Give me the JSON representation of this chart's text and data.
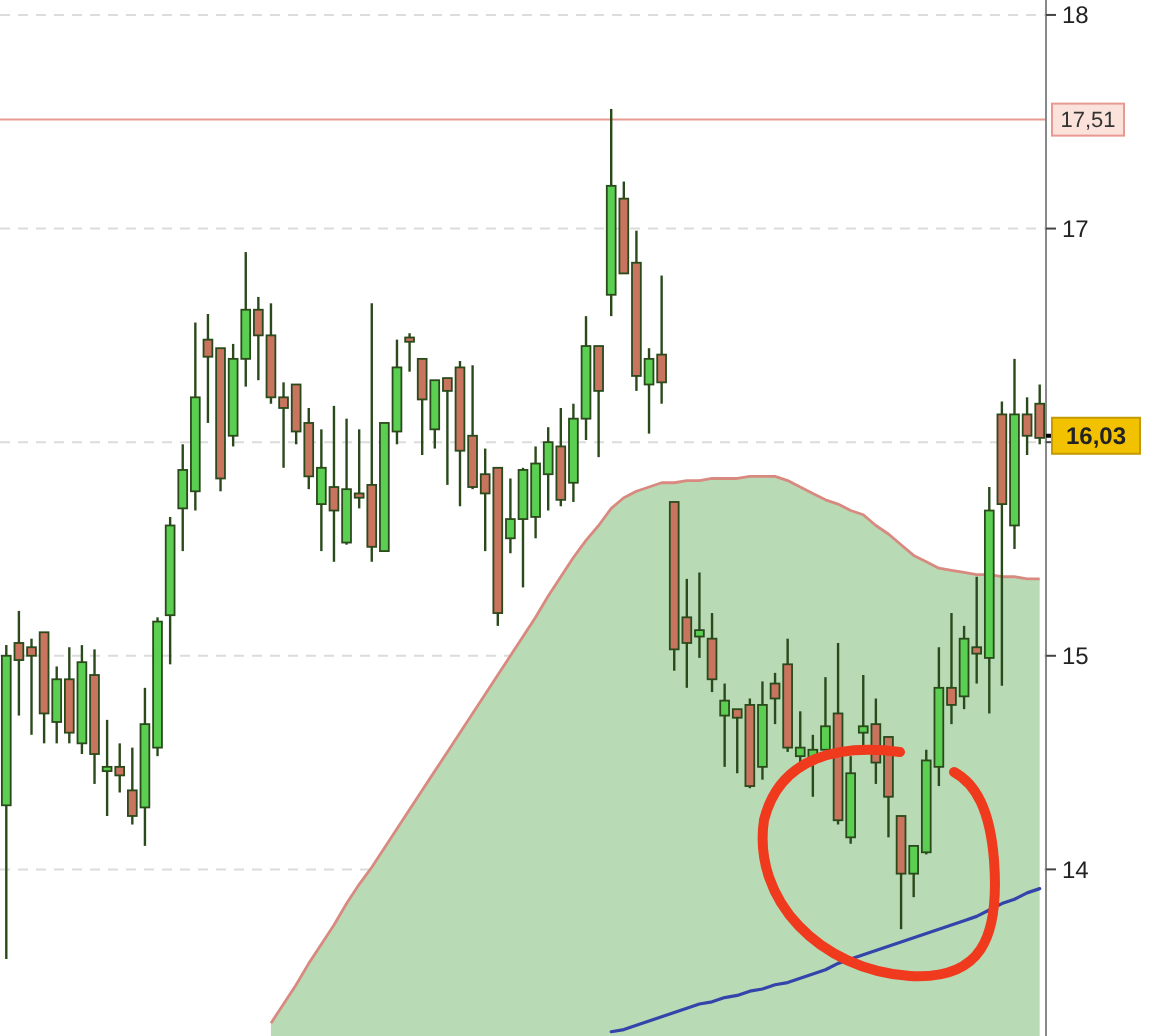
{
  "chart_data": {
    "type": "candlestick",
    "categories": [
      null,
      null,
      null,
      null,
      null,
      null,
      null,
      null,
      null,
      null,
      null,
      null,
      null,
      null,
      null,
      null,
      null,
      null,
      null,
      null,
      null,
      null,
      null,
      null,
      null,
      null,
      null,
      null,
      null,
      null,
      null,
      null,
      null,
      null,
      null,
      null,
      null,
      null,
      null,
      null,
      null,
      null,
      null,
      null,
      null,
      null,
      null,
      null,
      null,
      null,
      null,
      null,
      null,
      null,
      null,
      null,
      null,
      null,
      null,
      null,
      null,
      null,
      null,
      null,
      null,
      null,
      null,
      null,
      null,
      null,
      null,
      null,
      null,
      null,
      null,
      null,
      null,
      null,
      null,
      null,
      null,
      null,
      null
    ],
    "ohlc": [
      [
        14.3,
        15.05,
        13.58,
        15.0
      ],
      [
        15.06,
        15.21,
        14.72,
        14.98
      ],
      [
        15.04,
        15.08,
        14.63,
        15.0
      ],
      [
        15.11,
        15.11,
        14.59,
        14.73
      ],
      [
        14.69,
        14.95,
        14.59,
        14.89
      ],
      [
        14.89,
        15.04,
        14.59,
        14.64
      ],
      [
        14.59,
        15.05,
        14.54,
        14.97
      ],
      [
        14.91,
        15.03,
        14.4,
        14.54
      ],
      [
        14.46,
        14.7,
        14.25,
        14.48
      ],
      [
        14.48,
        14.59,
        14.36,
        14.44
      ],
      [
        14.37,
        14.57,
        14.21,
        14.25
      ],
      [
        14.29,
        14.85,
        14.11,
        14.68
      ],
      [
        14.57,
        15.18,
        14.53,
        15.16
      ],
      [
        15.19,
        15.65,
        14.96,
        15.61
      ],
      [
        15.69,
        15.99,
        15.49,
        15.87
      ],
      [
        15.77,
        16.56,
        15.68,
        16.21
      ],
      [
        16.48,
        16.6,
        16.09,
        16.4
      ],
      [
        16.44,
        16.44,
        15.77,
        15.83
      ],
      [
        16.03,
        16.46,
        15.98,
        16.39
      ],
      [
        16.39,
        16.89,
        16.26,
        16.62
      ],
      [
        16.62,
        16.68,
        16.29,
        16.5
      ],
      [
        16.5,
        16.65,
        16.18,
        16.21
      ],
      [
        16.21,
        16.28,
        15.88,
        16.16
      ],
      [
        16.27,
        16.27,
        15.99,
        16.05
      ],
      [
        16.09,
        16.16,
        15.78,
        15.84
      ],
      [
        15.71,
        16.06,
        15.49,
        15.88
      ],
      [
        15.79,
        16.17,
        15.44,
        15.68
      ],
      [
        15.53,
        16.11,
        15.52,
        15.78
      ],
      [
        15.76,
        16.06,
        15.69,
        15.74
      ],
      [
        15.8,
        16.65,
        15.44,
        15.51
      ],
      [
        15.49,
        16.09,
        15.49,
        16.09
      ],
      [
        16.05,
        16.48,
        15.99,
        16.35
      ],
      [
        16.49,
        16.51,
        16.33,
        16.47
      ],
      [
        16.39,
        16.39,
        15.94,
        16.2
      ],
      [
        16.06,
        16.29,
        15.97,
        16.29
      ],
      [
        16.3,
        16.3,
        15.8,
        16.24
      ],
      [
        16.35,
        16.38,
        15.7,
        15.96
      ],
      [
        16.03,
        16.36,
        15.78,
        15.79
      ],
      [
        15.85,
        15.97,
        15.49,
        15.76
      ],
      [
        15.88,
        15.88,
        15.14,
        15.2
      ],
      [
        15.55,
        15.83,
        15.48,
        15.64
      ],
      [
        15.64,
        15.88,
        15.32,
        15.87
      ],
      [
        15.65,
        15.98,
        15.55,
        15.9
      ],
      [
        15.85,
        16.07,
        15.68,
        16.0
      ],
      [
        15.98,
        16.16,
        15.7,
        15.73
      ],
      [
        15.81,
        16.18,
        15.72,
        16.11
      ],
      [
        16.11,
        16.59,
        16.01,
        16.45
      ],
      [
        16.45,
        16.45,
        15.93,
        16.24
      ],
      [
        16.69,
        17.56,
        16.59,
        17.2
      ],
      [
        17.14,
        17.22,
        16.79,
        16.79
      ],
      [
        16.84,
        16.99,
        16.24,
        16.31
      ],
      [
        16.27,
        16.44,
        16.04,
        16.39
      ],
      [
        16.41,
        16.78,
        16.18,
        16.28
      ],
      [
        15.72,
        15.72,
        14.93,
        15.03
      ],
      [
        15.18,
        15.36,
        14.85,
        15.06
      ],
      [
        15.09,
        15.39,
        14.99,
        15.12
      ],
      [
        15.08,
        15.2,
        14.83,
        14.89
      ],
      [
        14.72,
        14.87,
        14.48,
        14.79
      ],
      [
        14.75,
        14.75,
        14.45,
        14.71
      ],
      [
        14.77,
        14.8,
        14.38,
        14.39
      ],
      [
        14.48,
        14.88,
        14.42,
        14.77
      ],
      [
        14.87,
        14.92,
        14.68,
        14.8
      ],
      [
        14.96,
        15.08,
        14.55,
        14.57
      ],
      [
        14.53,
        14.74,
        14.49,
        14.57
      ],
      [
        14.52,
        14.63,
        14.34,
        14.56
      ],
      [
        14.56,
        14.9,
        14.56,
        14.67
      ],
      [
        14.73,
        15.06,
        14.21,
        14.23
      ],
      [
        14.15,
        14.53,
        14.12,
        14.45
      ],
      [
        14.64,
        14.91,
        14.58,
        14.67
      ],
      [
        14.68,
        14.8,
        14.4,
        14.5
      ],
      [
        14.62,
        14.62,
        14.15,
        14.34
      ],
      [
        14.25,
        14.25,
        13.72,
        13.98
      ],
      [
        13.98,
        14.11,
        13.87,
        14.11
      ],
      [
        14.08,
        14.56,
        14.07,
        14.51
      ],
      [
        14.48,
        15.04,
        14.39,
        14.85
      ],
      [
        14.85,
        15.2,
        14.68,
        14.77
      ],
      [
        14.81,
        15.14,
        14.75,
        15.08
      ],
      [
        15.04,
        15.37,
        14.87,
        15.01
      ],
      [
        14.99,
        15.79,
        14.73,
        15.68
      ],
      [
        16.13,
        16.19,
        14.86,
        15.71
      ],
      [
        15.61,
        16.39,
        15.5,
        16.13
      ],
      [
        16.13,
        16.21,
        15.94,
        16.03
      ],
      [
        16.18,
        16.27,
        15.99,
        16.02
      ]
    ],
    "series": [
      {
        "type": "area",
        "color": "#b8dbb6",
        "values": [
          null,
          null,
          null,
          null,
          null,
          null,
          null,
          null,
          null,
          null,
          null,
          null,
          null,
          null,
          null,
          null,
          null,
          null,
          null,
          null,
          null,
          13.28,
          13.37,
          13.46,
          13.56,
          13.65,
          13.74,
          13.84,
          13.93,
          14.01,
          14.1,
          14.19,
          14.28,
          14.37,
          14.46,
          14.55,
          14.64,
          14.73,
          14.82,
          14.91,
          15.0,
          15.09,
          15.18,
          15.28,
          15.37,
          15.46,
          15.54,
          15.61,
          15.69,
          15.74,
          15.77,
          15.79,
          15.81,
          15.81,
          15.82,
          15.82,
          15.83,
          15.83,
          15.83,
          15.84,
          15.84,
          15.84,
          15.82,
          15.79,
          15.76,
          15.73,
          15.71,
          15.68,
          15.66,
          15.61,
          15.57,
          15.52,
          15.47,
          15.44,
          15.41,
          15.4,
          15.39,
          15.38,
          15.38,
          15.37,
          15.37,
          15.36,
          15.36
        ]
      },
      {
        "type": "line",
        "color": "#3344aa",
        "values": [
          null,
          null,
          null,
          null,
          null,
          null,
          null,
          null,
          null,
          null,
          null,
          null,
          null,
          null,
          null,
          null,
          null,
          null,
          null,
          null,
          null,
          null,
          null,
          null,
          null,
          null,
          null,
          null,
          null,
          null,
          null,
          null,
          null,
          null,
          null,
          null,
          null,
          null,
          null,
          null,
          null,
          null,
          null,
          null,
          null,
          null,
          null,
          null,
          13.24,
          13.25,
          13.27,
          13.29,
          13.31,
          13.33,
          13.35,
          13.37,
          13.38,
          13.4,
          13.41,
          13.43,
          13.44,
          13.46,
          13.47,
          13.49,
          13.51,
          13.53,
          13.56,
          13.58,
          13.6,
          13.62,
          13.64,
          13.66,
          13.68,
          13.7,
          13.72,
          13.74,
          13.76,
          13.78,
          13.81,
          13.84,
          13.86,
          13.89,
          13.91
        ]
      }
    ],
    "ylim": [
      13.22,
      18.07
    ],
    "yticks": [
      14,
      15,
      {
        "value": 16,
        "label": null
      },
      17,
      18
    ],
    "grid": "y",
    "tick_labels": "y",
    "ref_lines": [
      {
        "axis": "y",
        "value": 17.51,
        "label": "17,51",
        "color": "#e89a92"
      }
    ],
    "annotations": [
      {
        "text": "16,03",
        "y": 16.03
      }
    ]
  }
}
